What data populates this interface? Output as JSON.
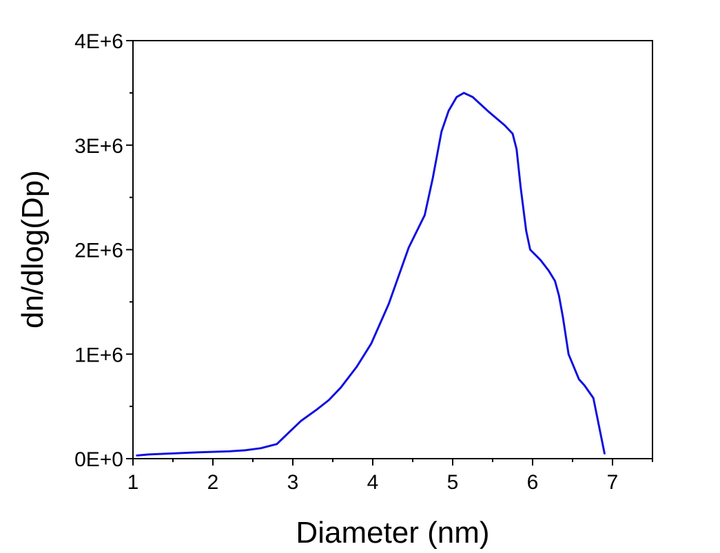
{
  "chart_data": {
    "type": "line",
    "title": "",
    "xlabel": "Diameter (nm)",
    "ylabel": "dn/dlog(Dp)",
    "xlim": [
      1,
      7.5
    ],
    "ylim": [
      0,
      4000000
    ],
    "x_ticks": [
      1,
      2,
      3,
      4,
      5,
      6,
      7
    ],
    "x_tick_labels": [
      "1",
      "2",
      "3",
      "4",
      "5",
      "6",
      "7"
    ],
    "y_ticks": [
      0,
      1000000,
      2000000,
      3000000,
      4000000
    ],
    "y_tick_labels": [
      "0E+0",
      "1E+6",
      "2E+6",
      "3E+6",
      "4E+6"
    ],
    "grid": false,
    "legend": "none",
    "line_color": "#1010e0",
    "series": [
      {
        "x": [
          1.05,
          1.2,
          1.5,
          1.8,
          2.0,
          2.2,
          2.4,
          2.6,
          2.8,
          2.95,
          3.1,
          3.3,
          3.45,
          3.6,
          3.8,
          3.98,
          4.2,
          4.45,
          4.65,
          4.75,
          4.86,
          4.95,
          5.05,
          5.14,
          5.25,
          5.45,
          5.65,
          5.75,
          5.8,
          5.85,
          5.92,
          5.97,
          6.1,
          6.2,
          6.28,
          6.33,
          6.38,
          6.45,
          6.58,
          6.65,
          6.76,
          6.9
        ],
        "values": [
          30000,
          40000,
          50000,
          60000,
          65000,
          70000,
          80000,
          100000,
          140000,
          250000,
          360000,
          470000,
          560000,
          680000,
          880000,
          1100000,
          1480000,
          2020000,
          2330000,
          2680000,
          3130000,
          3330000,
          3460000,
          3500000,
          3460000,
          3320000,
          3190000,
          3110000,
          2960000,
          2600000,
          2180000,
          2000000,
          1900000,
          1800000,
          1700000,
          1560000,
          1350000,
          1000000,
          760000,
          700000,
          580000,
          50000
        ]
      }
    ]
  }
}
